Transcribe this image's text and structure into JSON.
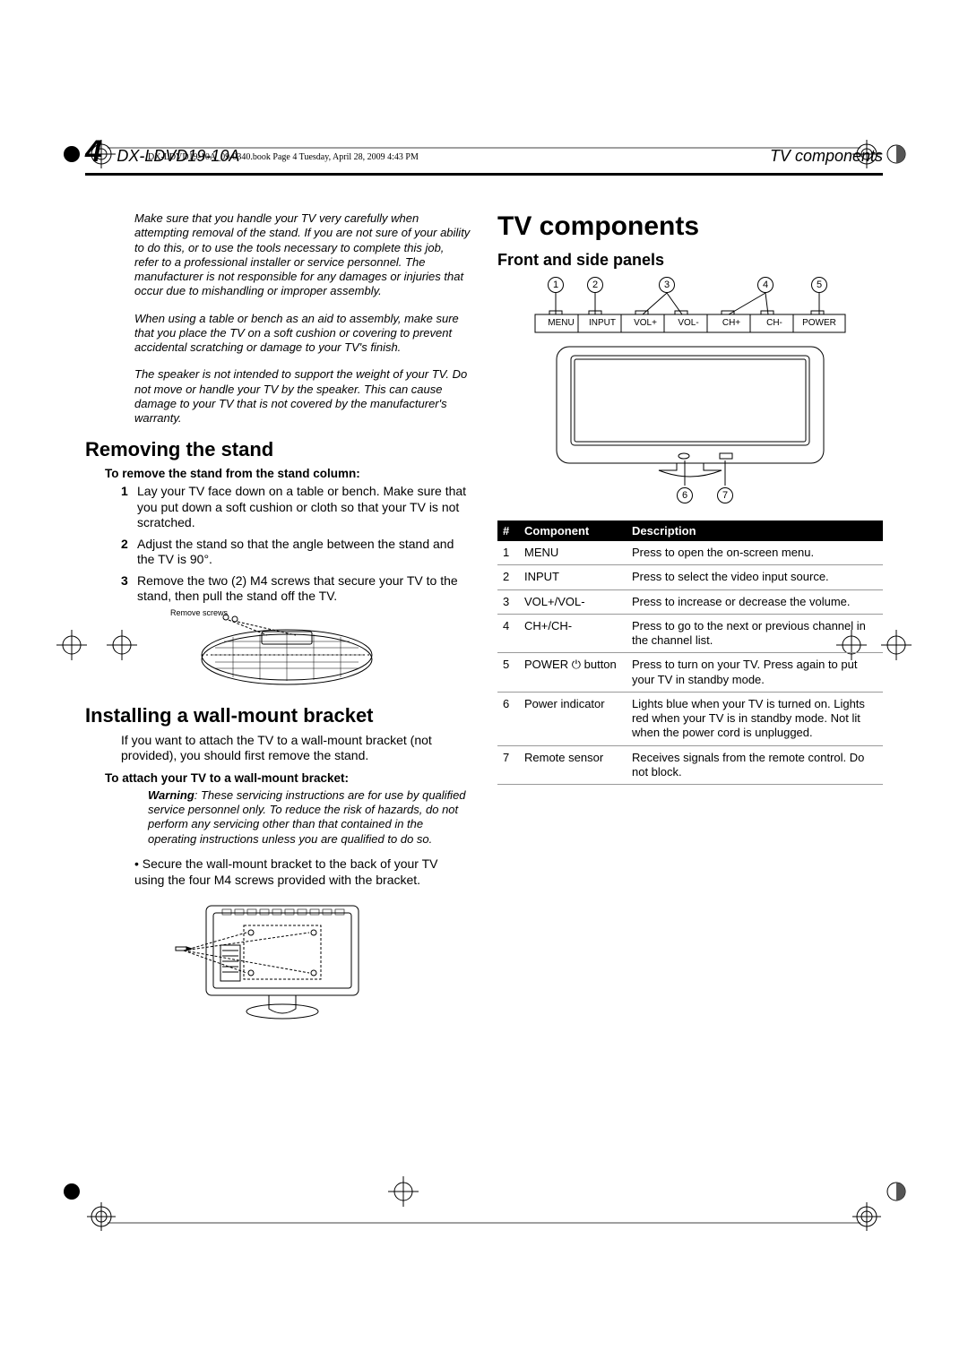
{
  "crop_header": "DX-LDVD19-10A_09-0340.book  Page 4  Tuesday, April 28, 2009  4:43 PM",
  "page_number": "4",
  "model": "DX-LDVD19-10A",
  "running_section": "TV components",
  "left": {
    "notes": [
      "Make sure that you handle your TV very carefully when attempting removal of the stand. If you are not sure of your ability to do this, or to use the tools necessary to complete this job, refer to a professional installer or service personnel. The manufacturer is not responsible for any damages or injuries that occur due to mishandling or improper assembly.",
      "When using a table or bench as an aid to assembly, make sure that you place the TV on a soft cushion or covering to prevent accidental scratching or damage to your TV's finish.",
      "The speaker is not intended to support the weight of your TV. Do not move or handle your TV by the speaker. This can cause damage to your TV that is not covered by the manufacturer's warranty."
    ],
    "removing_heading": "Removing the stand",
    "removing_intro": "To remove the stand from the stand column:",
    "removing_steps": [
      "Lay your TV face down on a table or bench. Make sure that you put down a soft cushion or cloth so that your TV is not scratched.",
      "Adjust the stand so that the angle between the stand and the TV is 90°.",
      "Remove the two (2) M4 screws that secure your TV to the stand, then pull the stand off the TV."
    ],
    "fig1_caption": "Remove screws",
    "installing_heading": "Installing a wall-mount bracket",
    "installing_body": "If you want to attach the TV to a wall-mount bracket (not provided), you should first remove the stand.",
    "attach_intro": "To attach your TV to a wall-mount bracket:",
    "warning_label": "Warning",
    "warning": ": These servicing instructions are for use by qualified service personnel only. To reduce the risk of hazards, do not perform any servicing other than that contained in the operating instructions unless you are qualified to do so.",
    "bullet": "Secure the wall-mount bracket to the back of your TV using the four M4 screws provided with the bracket."
  },
  "right": {
    "title": "TV components",
    "subtitle": "Front and side panels",
    "panel_labels": [
      "MENU",
      "INPUT",
      "VOL+",
      "VOL-",
      "CH+",
      "CH-",
      "POWER"
    ],
    "callouts": [
      "1",
      "2",
      "3",
      "4",
      "5",
      "6",
      "7"
    ],
    "table": {
      "headers": [
        "#",
        "Component",
        "Description"
      ],
      "rows": [
        [
          "1",
          "MENU",
          "Press to open the on-screen menu."
        ],
        [
          "2",
          "INPUT",
          "Press to select the video input source."
        ],
        [
          "3",
          "VOL+/VOL-",
          "Press to increase or decrease the volume."
        ],
        [
          "4",
          "CH+/CH-",
          "Press to go to the next or previous channel in the channel list."
        ],
        [
          "5",
          "POWER ⏻ button",
          "Press to turn on your TV. Press again to put your TV in standby mode."
        ],
        [
          "6",
          "Power indicator",
          "Lights blue when your TV is turned on. Lights red when your TV is in standby mode. Not lit when the power cord is unplugged."
        ],
        [
          "7",
          "Remote sensor",
          "Receives signals from the remote control. Do not block."
        ]
      ]
    }
  }
}
